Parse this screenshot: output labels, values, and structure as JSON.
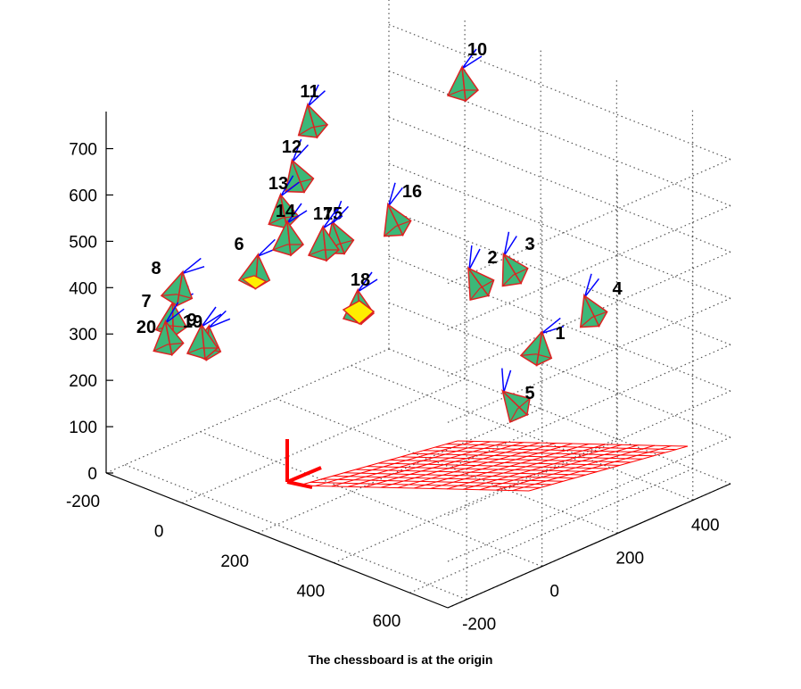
{
  "chart_data": {
    "type": "scatter3d",
    "title": "",
    "caption": "The chessboard is at the origin",
    "axes": {
      "x": {
        "ticks": [
          "-200",
          "0",
          "200",
          "400",
          "600"
        ],
        "range": [
          -200,
          700
        ]
      },
      "y": {
        "ticks": [
          "-200",
          "0",
          "200",
          "400"
        ],
        "range": [
          -250,
          500
        ]
      },
      "z": {
        "ticks": [
          "0",
          "100",
          "200",
          "300",
          "400",
          "500",
          "600",
          "700"
        ],
        "range": [
          0,
          780
        ]
      }
    },
    "grid": true,
    "colors": {
      "grid": "#555555",
      "board": "#ff0000",
      "camera_face": "#3cb878",
      "camera_edge": "#dd2222",
      "camera_yellow": "#ffee00",
      "camera_axis": "#0000ff"
    },
    "cameras": [
      {
        "id": "1",
        "label": "1"
      },
      {
        "id": "2",
        "label": "2"
      },
      {
        "id": "3",
        "label": "3"
      },
      {
        "id": "4",
        "label": "4"
      },
      {
        "id": "5",
        "label": "5"
      },
      {
        "id": "6",
        "label": "6"
      },
      {
        "id": "7",
        "label": "7"
      },
      {
        "id": "8",
        "label": "8"
      },
      {
        "id": "9",
        "label": "9"
      },
      {
        "id": "10",
        "label": "10"
      },
      {
        "id": "11",
        "label": "11"
      },
      {
        "id": "12",
        "label": "12"
      },
      {
        "id": "13",
        "label": "13"
      },
      {
        "id": "14",
        "label": "14"
      },
      {
        "id": "15",
        "label": "15"
      },
      {
        "id": "16",
        "label": "16"
      },
      {
        "id": "17",
        "label": "17"
      },
      {
        "id": "18",
        "label": "18"
      },
      {
        "id": "19",
        "label": "19"
      },
      {
        "id": "20",
        "label": "20"
      }
    ]
  }
}
